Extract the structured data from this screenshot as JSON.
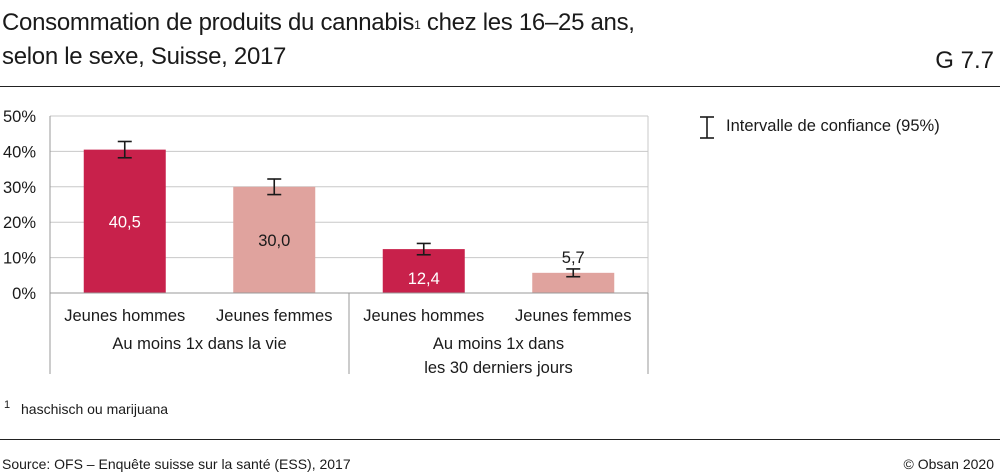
{
  "header": {
    "title_line1": "Consommation de produits du cannabis",
    "title_sup": "1",
    "title_line1_rest": " chez les 16–25 ans,",
    "title_line2": "selon le sexe, Suisse, 2017",
    "code": "G 7.7"
  },
  "legend": {
    "ci_label": "Intervalle de confiance (95%)"
  },
  "footnote": {
    "mark": "1",
    "text": "haschisch ou marijuana"
  },
  "footer": {
    "source": "Source: OFS – Enquête suisse sur la santé (ESS), 2017",
    "copyright": "© Obsan 2020"
  },
  "colors": {
    "hommes": "#c8214b",
    "femmes": "#e0a39e",
    "grid": "#c8c8c8",
    "axis": "#999999"
  },
  "chart_data": {
    "type": "bar",
    "ylim": [
      0,
      50
    ],
    "yticks": [
      "0%",
      "10%",
      "20%",
      "30%",
      "40%",
      "50%"
    ],
    "grid": true,
    "legend_position": "right",
    "groups": [
      {
        "label": "Au moins 1x dans la vie",
        "label_lines": [
          "Au moins 1x dans la vie"
        ]
      },
      {
        "label": "Au moins 1x dans les 30 derniers jours",
        "label_lines": [
          "Au moins 1x dans",
          "les 30 derniers jours"
        ]
      }
    ],
    "bars": [
      {
        "category": "Jeunes hommes",
        "group": 0,
        "value": 40.5,
        "label": "40,5",
        "ci": [
          38.2,
          42.8
        ],
        "color_key": "hommes",
        "label_inside": true
      },
      {
        "category": "Jeunes femmes",
        "group": 0,
        "value": 30.0,
        "label": "30,0",
        "ci": [
          27.8,
          32.2
        ],
        "color_key": "femmes",
        "label_inside": true
      },
      {
        "category": "Jeunes hommes",
        "group": 1,
        "value": 12.4,
        "label": "12,4",
        "ci": [
          10.8,
          14.0
        ],
        "color_key": "hommes",
        "label_inside": true
      },
      {
        "category": "Jeunes femmes",
        "group": 1,
        "value": 5.7,
        "label": "5,7",
        "ci": [
          4.6,
          6.8
        ],
        "color_key": "femmes",
        "label_inside": false
      }
    ]
  }
}
